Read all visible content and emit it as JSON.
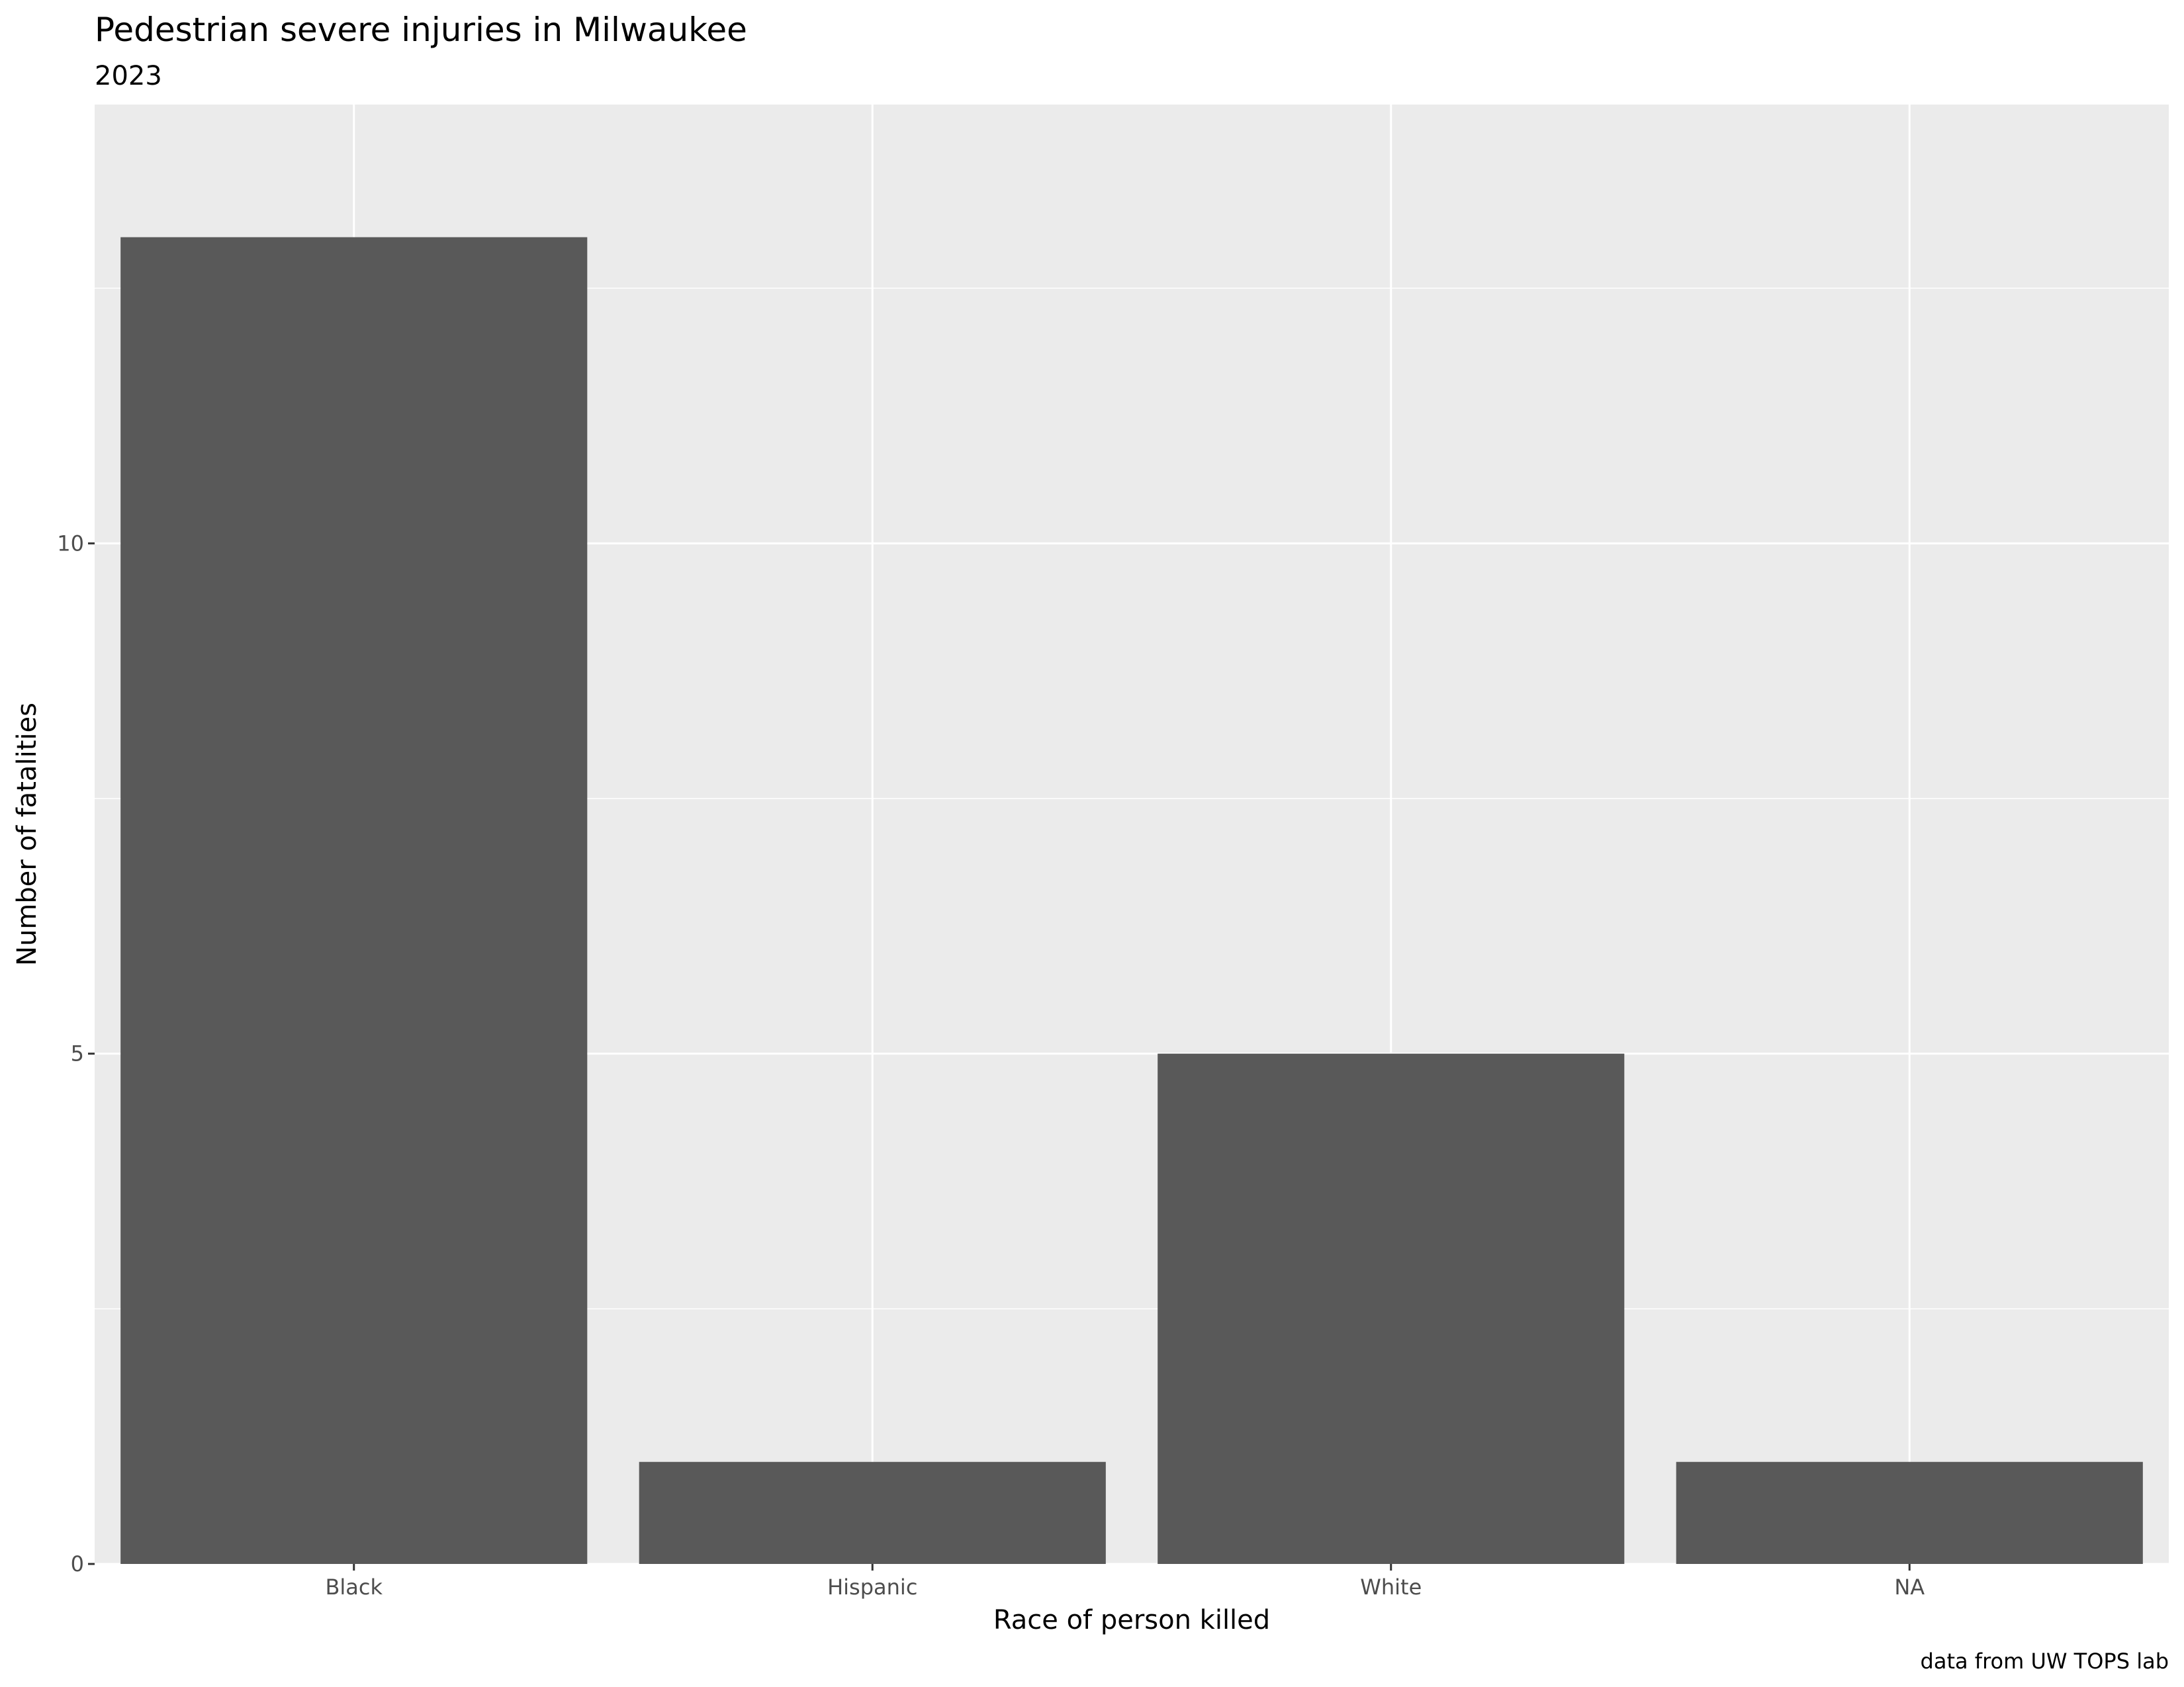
{
  "chart_data": {
    "type": "bar",
    "title": "Pedestrian severe injuries in Milwaukee",
    "subtitle": "2023",
    "xlabel": "Race of person killed",
    "ylabel": "Number of fatalities",
    "caption": "data from UW TOPS lab",
    "categories": [
      "Black",
      "Hispanic",
      "White",
      "NA"
    ],
    "values": [
      13,
      1,
      5,
      1
    ],
    "ylim": [
      0,
      14.3
    ],
    "yticks": [
      0,
      5,
      10
    ],
    "grid": true,
    "legend": "none",
    "colors": {
      "bar": "#595959",
      "panel": "#EBEBEB",
      "grid": "#FFFFFF",
      "text": "#000000",
      "tick_text": "#4D4D4D"
    }
  }
}
